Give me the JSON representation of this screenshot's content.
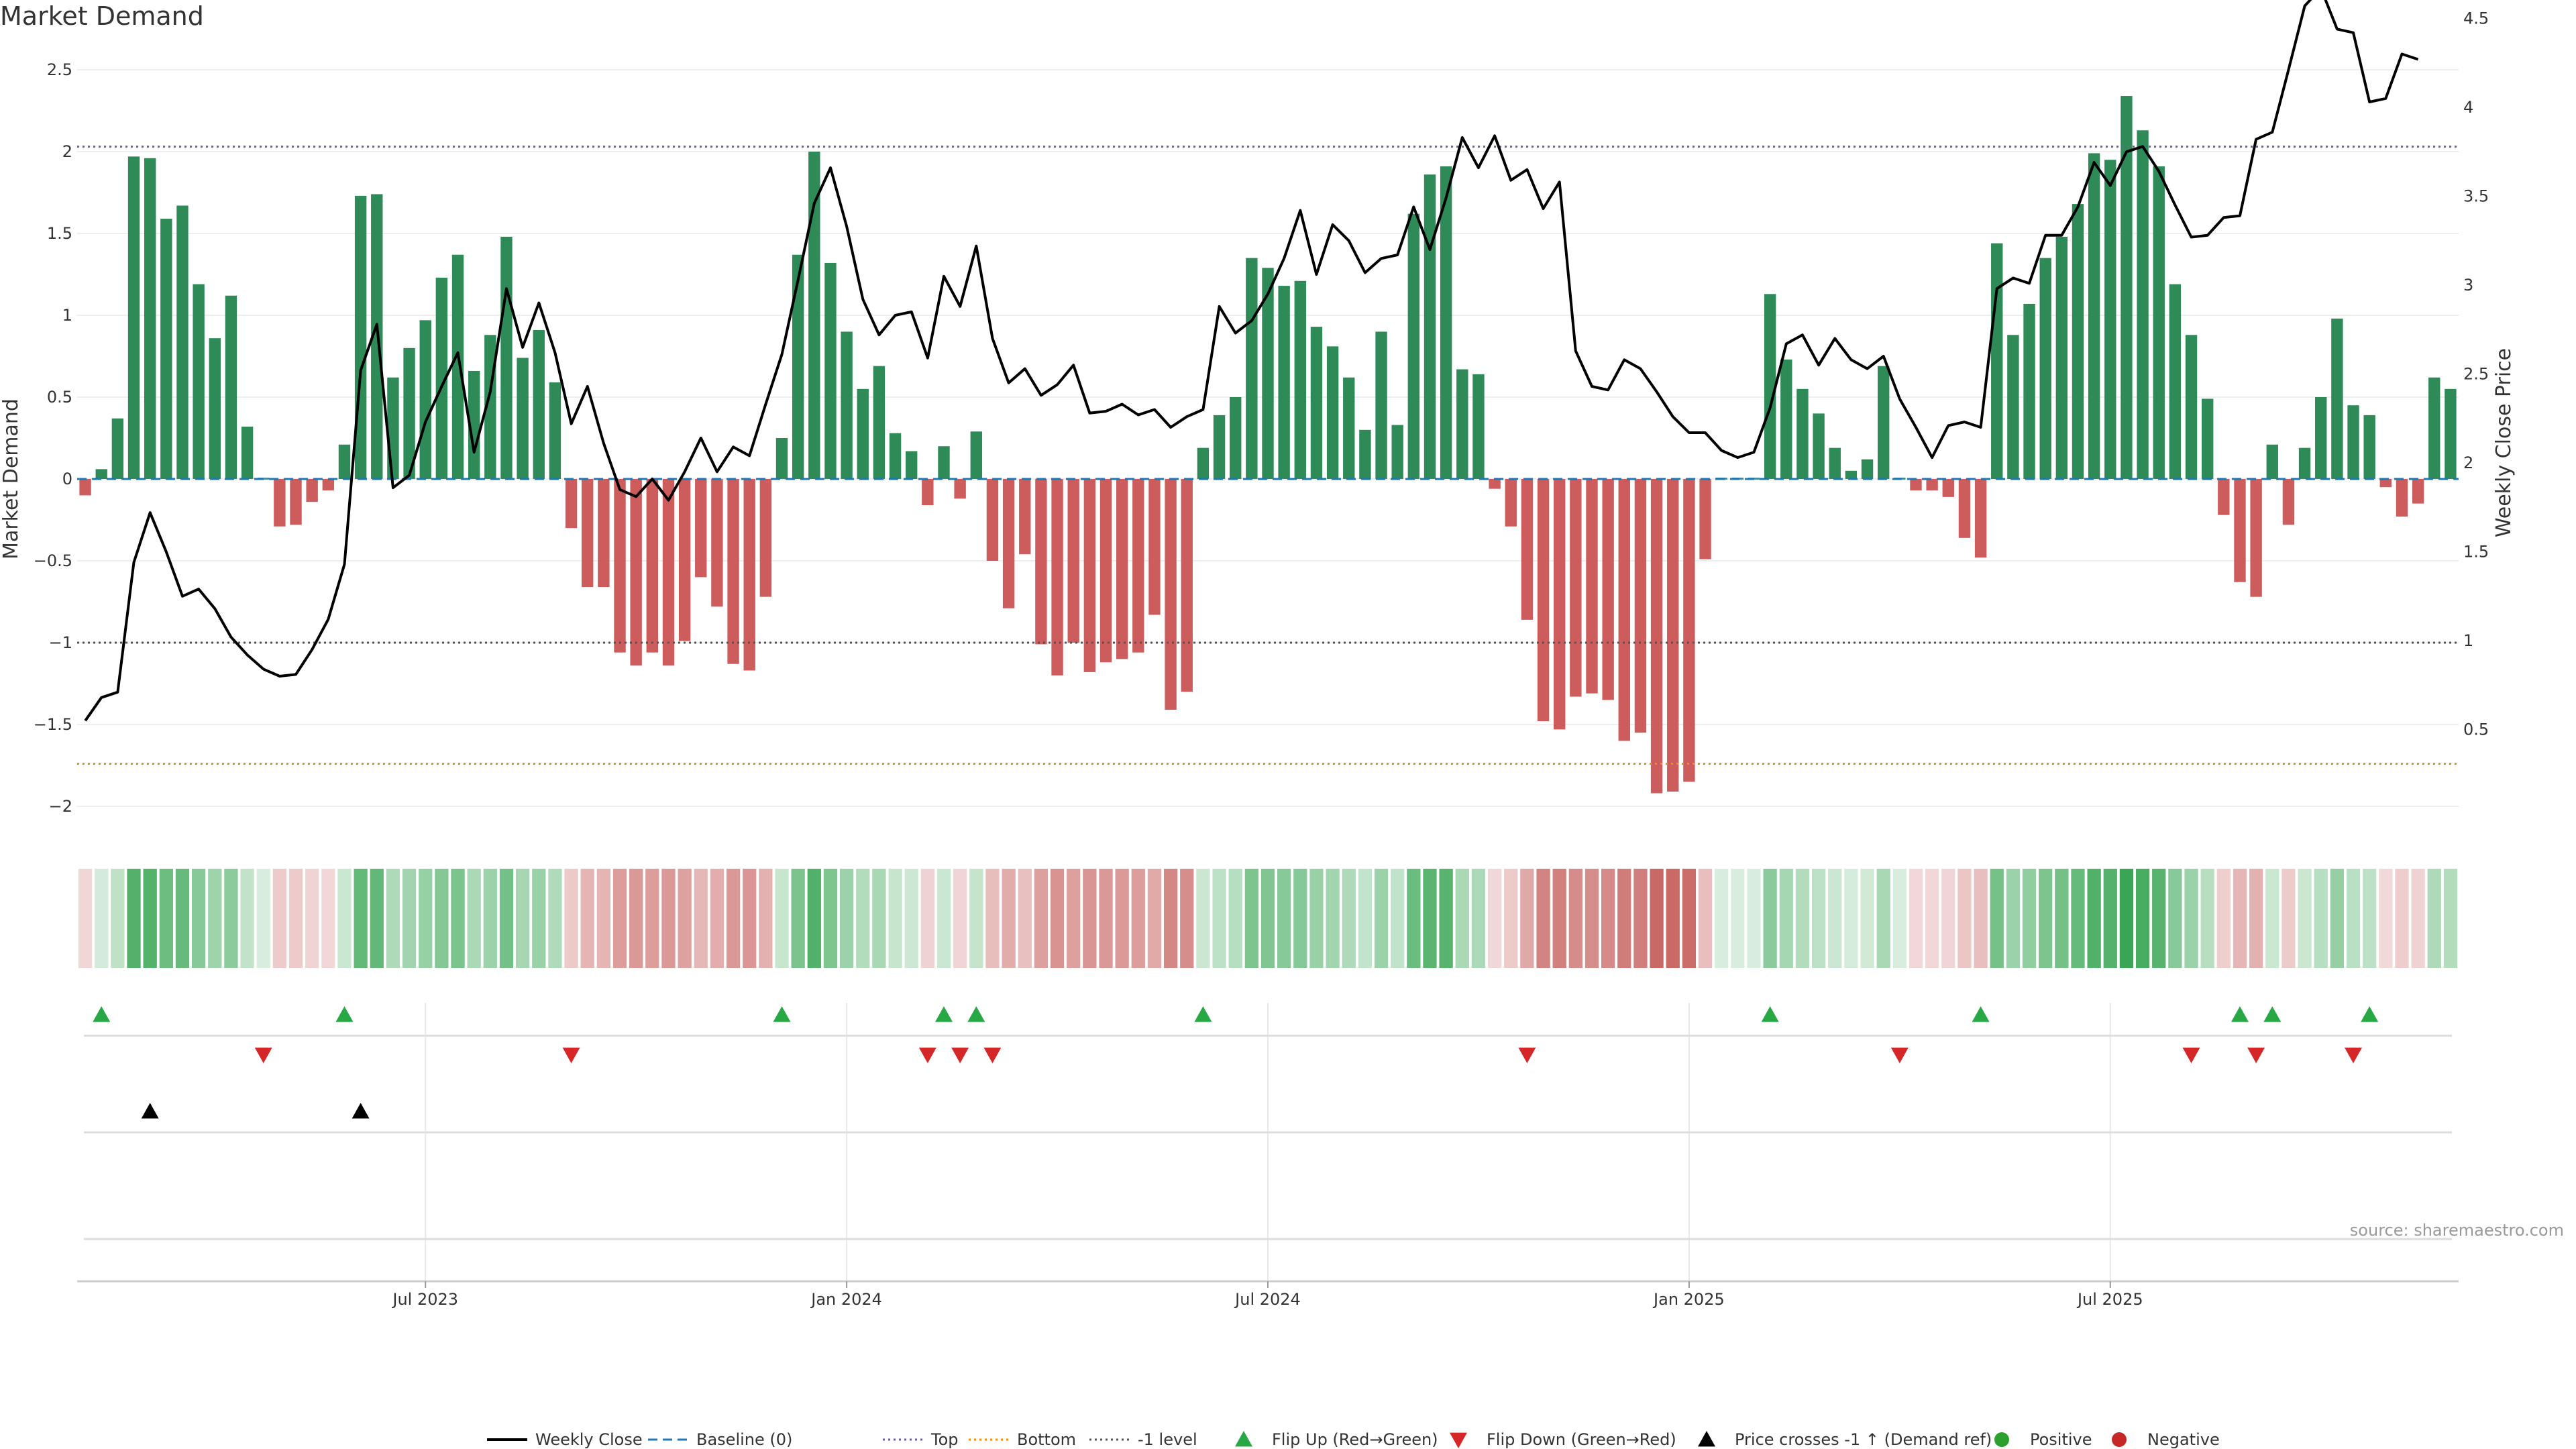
{
  "title": "Market Demand",
  "source": "source: sharemaestro.com",
  "colors": {
    "positive": "#2e8b57",
    "negative": "#cd5c5c",
    "flip_up": "#28a745",
    "flip_down": "#d62728",
    "cross": "#000000",
    "top_line": "#6b5fa8",
    "bottom_line": "#ff8c00",
    "minus1_line": "#555555",
    "baseline": "#1f77b4"
  },
  "chart_data": {
    "type": "bar",
    "title": "Market Demand",
    "ylabel": "Market Demand",
    "y2label": "Weekly Close Price",
    "ylim": [
      -2.15,
      2.55
    ],
    "y2lim": [
      0.4,
      4.75
    ],
    "yticks": [
      {
        "v": 2.5,
        "label": "2.5"
      },
      {
        "v": 2,
        "label": "2"
      },
      {
        "v": 1.5,
        "label": "1.5"
      },
      {
        "v": 1,
        "label": "1"
      },
      {
        "v": 0.5,
        "label": "0.5"
      },
      {
        "v": 0,
        "label": "0"
      },
      {
        "v": -0.5,
        "label": "−0.5"
      },
      {
        "v": -1,
        "label": "−1"
      },
      {
        "v": -1.5,
        "label": "−1.5"
      },
      {
        "v": -2,
        "label": "−2"
      }
    ],
    "y2ticks": [
      {
        "v": 4.5,
        "label": "4.5"
      },
      {
        "v": 4,
        "label": "4"
      },
      {
        "v": 3.5,
        "label": "3.5"
      },
      {
        "v": 3,
        "label": "3"
      },
      {
        "v": 2.5,
        "label": "2.5"
      },
      {
        "v": 2,
        "label": "2"
      },
      {
        "v": 1.5,
        "label": "1.5"
      },
      {
        "v": 1,
        "label": "1"
      },
      {
        "v": 0.5,
        "label": "0.5"
      }
    ],
    "xticks": [
      {
        "i": 21,
        "label": "Jul 2023"
      },
      {
        "i": 47,
        "label": "Jan 2024"
      },
      {
        "i": 73,
        "label": "Jul 2024"
      },
      {
        "i": 99,
        "label": "Jan 2025"
      },
      {
        "i": 125,
        "label": "Jul 2025"
      }
    ],
    "reference_lines": {
      "top": 2.03,
      "bottom": -1.74,
      "minus1": -1.0,
      "baseline": 0
    },
    "demand": [
      -0.1,
      0.06,
      0.37,
      1.97,
      1.96,
      1.59,
      1.67,
      1.19,
      0.86,
      1.12,
      0.32,
      0,
      -0.29,
      -0.28,
      -0.14,
      -0.07,
      0.21,
      1.73,
      1.74,
      0.62,
      0.8,
      0.97,
      1.23,
      1.37,
      0.66,
      0.88,
      1.48,
      0.74,
      0.91,
      0.59,
      -0.3,
      -0.66,
      -0.66,
      -1.06,
      -1.14,
      -1.06,
      -1.14,
      -0.99,
      -0.6,
      -0.78,
      -1.13,
      -1.17,
      -0.72,
      0.25,
      1.37,
      2.0,
      1.32,
      0.9,
      0.55,
      0.69,
      0.28,
      0.17,
      -0.16,
      0.2,
      -0.12,
      0.29,
      -0.5,
      -0.79,
      -0.46,
      -1.01,
      -1.2,
      -1.0,
      -1.18,
      -1.12,
      -1.1,
      -1.06,
      -0.83,
      -1.41,
      -1.3,
      0.19,
      0.39,
      0.5,
      1.35,
      1.29,
      1.18,
      1.21,
      0.93,
      0.81,
      0.62,
      0.3,
      0.9,
      0.33,
      1.62,
      1.86,
      1.91,
      0.67,
      0.64,
      -0.06,
      -0.29,
      -0.86,
      -1.48,
      -1.53,
      -1.33,
      -1.31,
      -1.35,
      -1.6,
      -1.55,
      -1.92,
      -1.91,
      -1.85,
      -0.49,
      0.0,
      0.0,
      0.0,
      1.13,
      0.73,
      0.55,
      0.4,
      0.19,
      0.05,
      0.12,
      0.69,
      0.0,
      -0.07,
      -0.07,
      -0.11,
      -0.36,
      -0.48,
      1.44,
      0.88,
      1.07,
      1.35,
      1.48,
      1.68,
      1.99,
      1.95,
      2.34,
      2.13,
      1.91,
      1.19,
      0.88,
      0.49,
      -0.22,
      -0.63,
      -0.72,
      0.21,
      -0.28,
      0.19,
      0.5,
      0.98,
      0.45,
      0.39,
      -0.05,
      -0.23,
      -0.15,
      0.62,
      0.55
    ],
    "weekly_close": [
      0.55,
      0.68,
      0.71,
      1.44,
      1.72,
      1.5,
      1.25,
      1.29,
      1.18,
      1.02,
      0.92,
      0.84,
      0.8,
      0.81,
      0.95,
      1.12,
      1.43,
      2.52,
      2.78,
      1.86,
      1.93,
      2.23,
      2.43,
      2.62,
      2.06,
      2.4,
      2.98,
      2.65,
      2.9,
      2.62,
      2.22,
      2.43,
      2.11,
      1.85,
      1.81,
      1.91,
      1.79,
      1.95,
      2.14,
      1.95,
      2.09,
      2.04,
      2.33,
      2.61,
      3.03,
      3.46,
      3.66,
      3.33,
      2.92,
      2.72,
      2.83,
      2.85,
      2.59,
      3.05,
      2.88,
      3.22,
      2.7,
      2.45,
      2.53,
      2.38,
      2.44,
      2.55,
      2.28,
      2.29,
      2.33,
      2.27,
      2.3,
      2.2,
      2.26,
      2.3,
      2.88,
      2.73,
      2.8,
      2.95,
      3.15,
      3.42,
      3.06,
      3.34,
      3.25,
      3.07,
      3.15,
      3.17,
      3.44,
      3.2,
      3.49,
      3.83,
      3.66,
      3.84,
      3.59,
      3.65,
      3.43,
      3.58,
      2.63,
      2.43,
      2.41,
      2.58,
      2.53,
      2.4,
      2.26,
      2.17,
      2.17,
      2.07,
      2.03,
      2.06,
      2.31,
      2.67,
      2.72,
      2.55,
      2.7,
      2.58,
      2.53,
      2.6,
      2.36,
      2.2,
      2.03,
      2.21,
      2.23,
      2.2,
      2.98,
      3.04,
      3.01,
      3.28,
      3.28,
      3.44,
      3.69,
      3.56,
      3.75,
      3.78,
      3.64,
      3.45,
      3.27,
      3.28,
      3.38,
      3.39,
      3.82,
      3.86,
      4.21,
      4.57,
      4.67,
      4.44,
      4.42,
      4.03,
      4.05,
      4.3,
      4.27
    ],
    "flip_up": [
      1,
      16,
      43,
      53,
      55,
      69,
      104,
      117,
      133,
      135,
      141
    ],
    "flip_down": [
      11,
      30,
      52,
      54,
      56,
      89,
      112,
      130,
      134,
      140
    ],
    "price_cross": [
      4,
      17
    ],
    "legend": [
      {
        "type": "line",
        "label": "Weekly Close"
      },
      {
        "type": "baseline",
        "label": "Baseline (0)"
      },
      {
        "type": "top",
        "label": "Top"
      },
      {
        "type": "bottom",
        "label": "Bottom"
      },
      {
        "type": "minus1",
        "label": "-1 level"
      },
      {
        "type": "flip_up",
        "label": "Flip Up (Red→Green)"
      },
      {
        "type": "flip_down",
        "label": "Flip Down (Green→Red)"
      },
      {
        "type": "cross",
        "label": "Price crosses -1 ↑ (Demand ref)"
      },
      {
        "type": "positive",
        "label": "Positive"
      },
      {
        "type": "negative",
        "label": "Negative"
      }
    ]
  }
}
